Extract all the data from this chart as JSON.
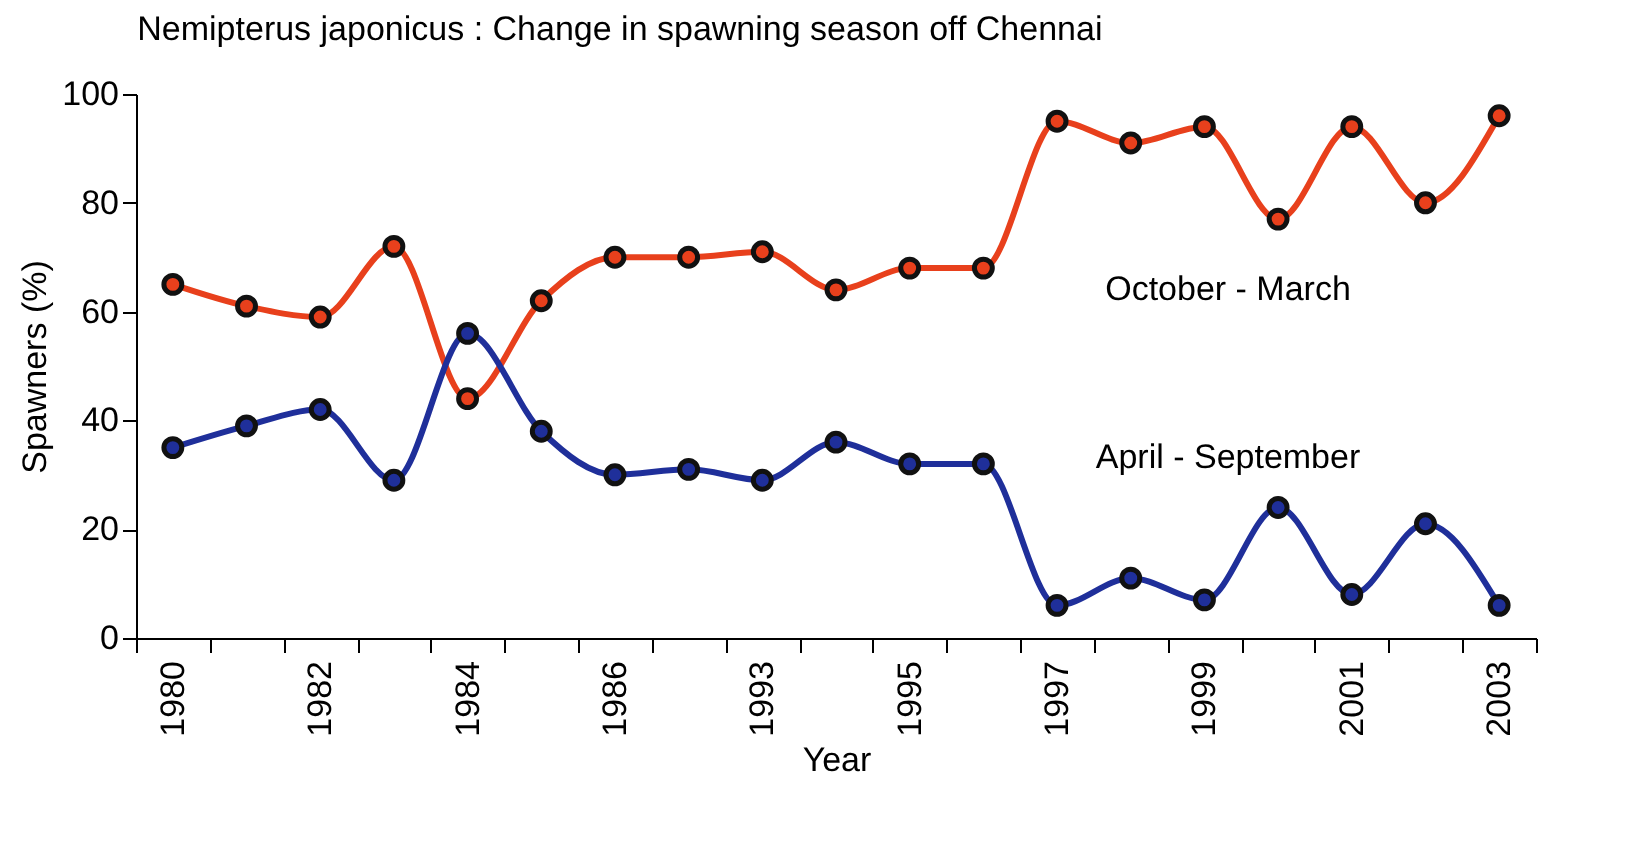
{
  "chart_data": {
    "type": "line",
    "title": "Nemipterus japonicus : Change in spawning season off Chennai",
    "xlabel": "Year",
    "ylabel": "Spawners (%)",
    "categories": [
      "1980",
      null,
      "1982",
      null,
      "1984",
      null,
      "1986",
      null,
      "1993",
      null,
      "1995",
      null,
      "1997",
      null,
      "1999",
      null,
      "2001",
      null,
      "2003"
    ],
    "series": [
      {
        "name": "October - March",
        "color": "#e8401c",
        "values": [
          65,
          61,
          59,
          72,
          44,
          62,
          70,
          70,
          71,
          64,
          68,
          68,
          95,
          91,
          94,
          77,
          94,
          80,
          96
        ]
      },
      {
        "name": "April - September",
        "color": "#1f2f9a",
        "values": [
          35,
          39,
          42,
          29,
          56,
          38,
          30,
          31,
          29,
          36,
          32,
          32,
          6,
          11,
          7,
          24,
          8,
          21,
          6
        ]
      }
    ],
    "ylim": [
      0,
      100
    ],
    "yticks": [
      0,
      20,
      40,
      60,
      80,
      100
    ],
    "grid": false,
    "legend": false,
    "marker": "circle",
    "line_style": "solid"
  }
}
